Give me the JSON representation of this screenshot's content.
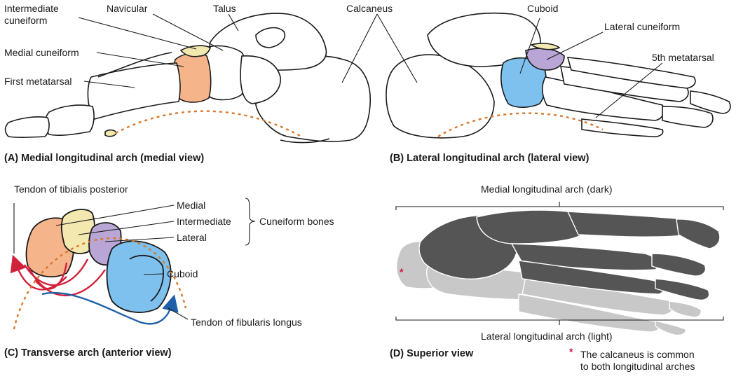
{
  "panels": {
    "a": {
      "caption": "(A) Medial longitudinal arch (medial view)",
      "labels": {
        "intermediate_cuneiform": "Intermediate\ncuneiform",
        "navicular": "Navicular",
        "talus": "Talus",
        "medial_cuneiform": "Medial cuneiform",
        "first_metatarsal": "First metatarsal"
      }
    },
    "b": {
      "caption": "(B) Lateral longitudinal arch (lateral view)",
      "labels": {
        "calcaneus": "Calcaneus",
        "cuboid": "Cuboid",
        "lateral_cuneiform": "Lateral cuneiform",
        "fifth_metatarsal": "5th metatarsal"
      }
    },
    "c": {
      "caption": "(C) Transverse arch (anterior view)",
      "labels": {
        "tendon_tibialis": "Tendon of tibialis posterior",
        "medial": "Medial",
        "intermediate": "Intermediate",
        "lateral": "Lateral",
        "cuneiform_bones": "Cuneiform bones",
        "cuboid": "Cuboid",
        "tendon_fibularis": "Tendon of fibularis longus"
      }
    },
    "d": {
      "caption": "(D)  Superior view",
      "labels": {
        "medial_arch": "Medial longitudinal arch (dark)",
        "lateral_arch": "Lateral longitudinal arch (light)",
        "asterisk": "*",
        "note": "The calcaneus is common\nto both longitudinal arches"
      }
    }
  },
  "colors": {
    "medial_cuneiform": "#f5b48a",
    "intermediate_cuneiform": "#f2e8b0",
    "lateral_cuneiform": "#b9a6d6",
    "cuboid": "#7fc1ee",
    "arch_line": "#d9772a",
    "tibialis_arrow": "#d0223a",
    "fibularis_arrow": "#1f5fa8",
    "dark_bone": "#555555",
    "light_bone": "#c8c8c8"
  }
}
